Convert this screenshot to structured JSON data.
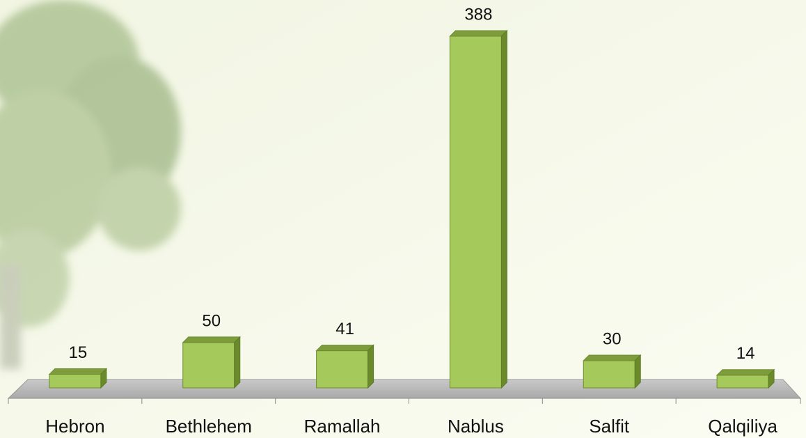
{
  "chart_data": {
    "type": "bar",
    "categories": [
      "Hebron",
      "Bethlehem",
      "Ramallah",
      "Nablus",
      "Salfit",
      "Qalqiliya"
    ],
    "values": [
      15,
      50,
      41,
      388,
      30,
      14
    ],
    "color": "#a6c95c"
  }
}
